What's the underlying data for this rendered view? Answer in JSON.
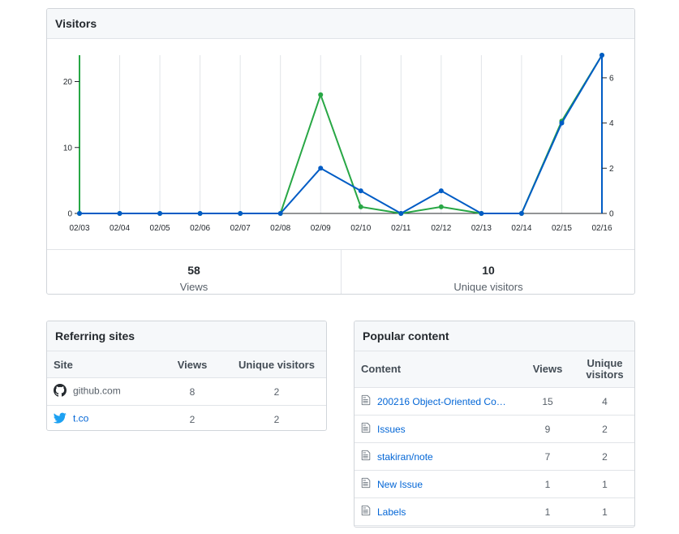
{
  "visitors": {
    "title": "Visitors",
    "views_total": "58",
    "views_label": "Views",
    "unique_total": "10",
    "unique_label": "Unique visitors"
  },
  "colors": {
    "views": "#28a745",
    "unique": "#005cc5",
    "grid": "#e1e4e8"
  },
  "chart_data": {
    "type": "line",
    "categories": [
      "02/03",
      "02/04",
      "02/05",
      "02/06",
      "02/07",
      "02/08",
      "02/09",
      "02/10",
      "02/11",
      "02/12",
      "02/13",
      "02/14",
      "02/15",
      "02/16"
    ],
    "series": [
      {
        "name": "Views",
        "axis": "left",
        "values": [
          0,
          0,
          0,
          0,
          0,
          0,
          18,
          1,
          0,
          1,
          0,
          0,
          14,
          24
        ]
      },
      {
        "name": "Unique visitors",
        "axis": "right",
        "values": [
          0,
          0,
          0,
          0,
          0,
          0,
          2,
          1,
          0,
          1,
          0,
          0,
          4,
          7
        ]
      }
    ],
    "left_ticks": [
      0,
      10,
      20
    ],
    "right_ticks": [
      0,
      2,
      4,
      6
    ],
    "ylim_left": [
      0,
      24
    ],
    "ylim_right": [
      0,
      7
    ]
  },
  "referring": {
    "title": "Referring sites",
    "headers": {
      "site": "Site",
      "views": "Views",
      "unique": "Unique visitors"
    },
    "rows": [
      {
        "site": "github.com",
        "views": "8",
        "unique": "2",
        "icon": "github-icon"
      },
      {
        "site": "t.co",
        "views": "2",
        "unique": "2",
        "icon": "twitter-icon"
      }
    ]
  },
  "popular": {
    "title": "Popular content",
    "headers": {
      "content": "Content",
      "views": "Views",
      "unique_line1": "Unique",
      "unique_line2": "visitors"
    },
    "rows": [
      {
        "title": "200216 Object-Oriented Con…",
        "views": "15",
        "unique": "4"
      },
      {
        "title": "Issues",
        "views": "9",
        "unique": "2"
      },
      {
        "title": "stakiran/note",
        "views": "7",
        "unique": "2"
      },
      {
        "title": "New Issue",
        "views": "1",
        "unique": "1"
      },
      {
        "title": "Labels",
        "views": "1",
        "unique": "1"
      }
    ]
  }
}
